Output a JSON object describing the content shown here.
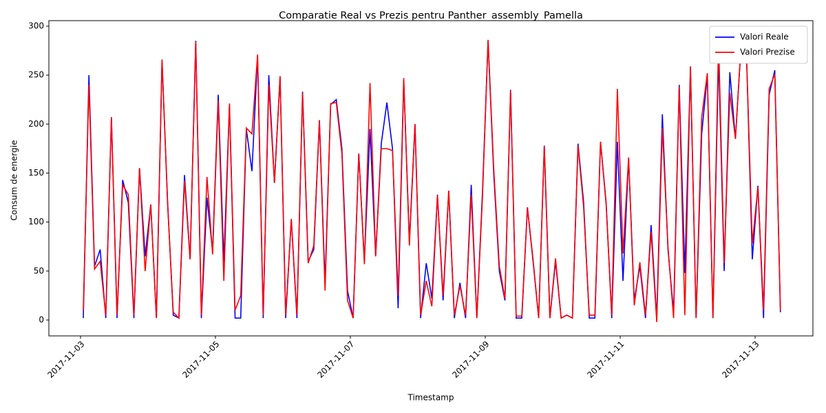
{
  "chart_data": {
    "type": "line",
    "title": "Comparatie Real vs Prezis pentru Panther_assembly_Pamella",
    "x_label": "Timestamp",
    "y_label": "Consum de energie",
    "x": [
      "2017-11-03T01:00",
      "2017-11-03T03:00",
      "2017-11-03T05:00",
      "2017-11-03T07:00",
      "2017-11-03T09:00",
      "2017-11-03T11:00",
      "2017-11-03T13:00",
      "2017-11-03T15:00",
      "2017-11-03T17:00",
      "2017-11-03T19:00",
      "2017-11-03T21:00",
      "2017-11-03T23:00",
      "2017-11-04T01:00",
      "2017-11-04T03:00",
      "2017-11-04T05:00",
      "2017-11-04T07:00",
      "2017-11-04T09:00",
      "2017-11-04T11:00",
      "2017-11-04T13:00",
      "2017-11-04T15:00",
      "2017-11-04T17:00",
      "2017-11-04T19:00",
      "2017-11-04T21:00",
      "2017-11-04T23:00",
      "2017-11-05T01:00",
      "2017-11-05T03:00",
      "2017-11-05T05:00",
      "2017-11-05T07:00",
      "2017-11-05T09:00",
      "2017-11-05T11:00",
      "2017-11-05T13:00",
      "2017-11-05T15:00",
      "2017-11-05T17:00",
      "2017-11-05T19:00",
      "2017-11-05T21:00",
      "2017-11-05T23:00",
      "2017-11-06T01:00",
      "2017-11-06T03:00",
      "2017-11-06T05:00",
      "2017-11-06T07:00",
      "2017-11-06T09:00",
      "2017-11-06T11:00",
      "2017-11-06T13:00",
      "2017-11-06T15:00",
      "2017-11-06T17:00",
      "2017-11-06T19:00",
      "2017-11-06T21:00",
      "2017-11-06T23:00",
      "2017-11-07T01:00",
      "2017-11-07T03:00",
      "2017-11-07T05:00",
      "2017-11-07T07:00",
      "2017-11-07T09:00",
      "2017-11-07T11:00",
      "2017-11-07T13:00",
      "2017-11-07T15:00",
      "2017-11-07T17:00",
      "2017-11-07T19:00",
      "2017-11-07T21:00",
      "2017-11-07T23:00",
      "2017-11-08T01:00",
      "2017-11-08T03:00",
      "2017-11-08T05:00",
      "2017-11-08T07:00",
      "2017-11-08T09:00",
      "2017-11-08T11:00",
      "2017-11-08T13:00",
      "2017-11-08T15:00",
      "2017-11-08T17:00",
      "2017-11-08T19:00",
      "2017-11-08T21:00",
      "2017-11-08T23:00",
      "2017-11-09T01:00",
      "2017-11-09T03:00",
      "2017-11-09T05:00",
      "2017-11-09T07:00",
      "2017-11-09T09:00",
      "2017-11-09T11:00",
      "2017-11-09T13:00",
      "2017-11-09T15:00",
      "2017-11-09T17:00",
      "2017-11-09T19:00",
      "2017-11-09T21:00",
      "2017-11-09T23:00",
      "2017-11-10T01:00",
      "2017-11-10T03:00",
      "2017-11-10T05:00",
      "2017-11-10T07:00",
      "2017-11-10T09:00",
      "2017-11-10T11:00",
      "2017-11-10T13:00",
      "2017-11-10T15:00",
      "2017-11-10T17:00",
      "2017-11-10T19:00",
      "2017-11-10T21:00",
      "2017-11-10T23:00",
      "2017-11-11T01:00",
      "2017-11-11T03:00",
      "2017-11-11T05:00",
      "2017-11-11T07:00",
      "2017-11-11T09:00",
      "2017-11-11T11:00",
      "2017-11-11T13:00",
      "2017-11-11T15:00",
      "2017-11-11T17:00",
      "2017-11-11T19:00",
      "2017-11-11T21:00",
      "2017-11-11T23:00",
      "2017-11-12T01:00",
      "2017-11-12T03:00",
      "2017-11-12T05:00",
      "2017-11-12T07:00",
      "2017-11-12T09:00",
      "2017-11-12T11:00",
      "2017-11-12T13:00",
      "2017-11-12T15:00",
      "2017-11-12T17:00",
      "2017-11-12T19:00",
      "2017-11-12T21:00",
      "2017-11-12T23:00",
      "2017-11-13T01:00",
      "2017-11-13T03:00",
      "2017-11-13T05:00",
      "2017-11-13T07:00",
      "2017-11-13T09:00"
    ],
    "series": [
      {
        "name": "Valori Reale",
        "color": "#0000ff",
        "values": [
          2,
          250,
          55,
          72,
          2,
          207,
          2,
          143,
          120,
          2,
          155,
          65,
          118,
          2,
          265,
          120,
          5,
          2,
          148,
          62,
          285,
          2,
          125,
          70,
          230,
          60,
          220,
          2,
          2,
          195,
          152,
          270,
          2,
          250,
          140,
          248,
          2,
          103,
          2,
          233,
          60,
          72,
          204,
          38,
          220,
          225,
          175,
          30,
          2,
          170,
          60,
          195,
          65,
          180,
          222,
          175,
          12,
          245,
          80,
          200,
          2,
          58,
          22,
          128,
          20,
          132,
          2,
          38,
          2,
          138,
          2,
          130,
          285,
          150,
          50,
          20,
          235,
          2,
          2,
          115,
          60,
          2,
          178,
          2,
          60,
          2,
          5,
          2,
          180,
          120,
          2,
          2,
          182,
          120,
          2,
          182,
          40,
          165,
          20,
          55,
          2,
          97,
          2,
          210,
          72,
          8,
          240,
          48,
          258,
          2,
          190,
          250,
          2,
          270,
          50,
          253,
          185,
          280,
          265,
          62,
          137,
          2,
          230,
          255,
          8
        ]
      },
      {
        "name": "Valori Prezise",
        "color": "#ff0000",
        "values": [
          10,
          240,
          52,
          60,
          5,
          207,
          5,
          138,
          128,
          5,
          155,
          50,
          118,
          2,
          266,
          118,
          8,
          2,
          142,
          62,
          284,
          5,
          146,
          67,
          224,
          40,
          221,
          10,
          25,
          196,
          190,
          271,
          5,
          240,
          140,
          249,
          5,
          103,
          5,
          232,
          58,
          76,
          204,
          30,
          221,
          222,
          170,
          20,
          2,
          170,
          57,
          242,
          65,
          175,
          175,
          173,
          25,
          247,
          76,
          200,
          5,
          40,
          14,
          127,
          25,
          132,
          5,
          35,
          5,
          128,
          2,
          125,
          286,
          155,
          55,
          22,
          234,
          4,
          4,
          115,
          62,
          2,
          177,
          2,
          63,
          2,
          5,
          2,
          178,
          115,
          5,
          5,
          182,
          118,
          5,
          236,
          68,
          166,
          15,
          59,
          5,
          90,
          -2,
          196,
          75,
          2,
          238,
          5,
          259,
          2,
          207,
          252,
          2,
          286,
          58,
          232,
          185,
          281,
          264,
          78,
          136,
          10,
          236,
          251,
          10
        ]
      }
    ],
    "xlim": [
      "2017-11-02T12:45",
      "2017-11-13T20:34"
    ],
    "xticks": [
      "2017-11-03",
      "2017-11-05",
      "2017-11-07",
      "2017-11-09",
      "2017-11-11",
      "2017-11-13"
    ],
    "ylim": [
      -16.2,
      305.6
    ],
    "yticks": [
      0,
      50,
      100,
      150,
      200,
      250,
      300
    ],
    "grid": false,
    "legend": "upper right"
  }
}
